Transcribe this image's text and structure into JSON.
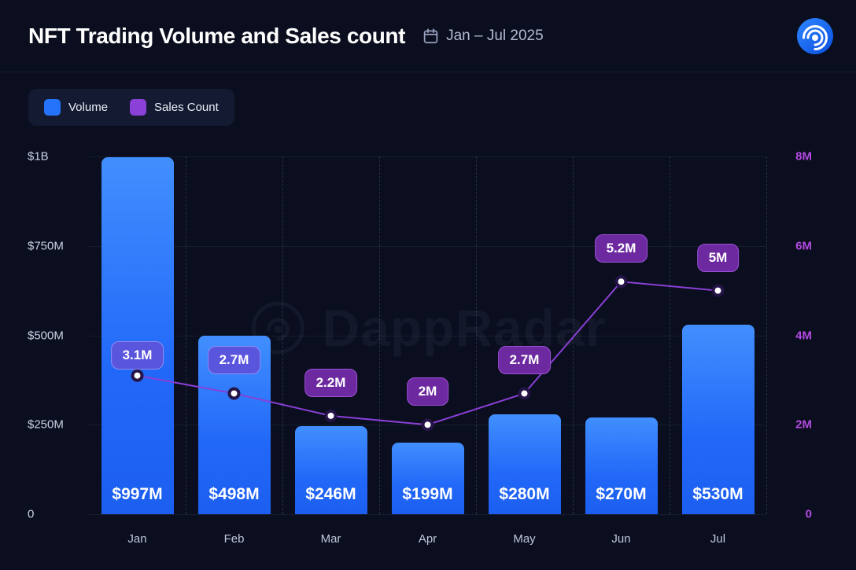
{
  "header": {
    "title": "NFT Trading Volume and Sales count",
    "date_range": "Jan – Jul 2025"
  },
  "legend": {
    "items": [
      {
        "label": "Volume",
        "color": "#2573fb"
      },
      {
        "label": "Sales Count",
        "color": "#8b41d8"
      }
    ]
  },
  "watermark": "DappRadar",
  "chart_data": {
    "type": "combo-bar-line",
    "categories": [
      "Jan",
      "Feb",
      "Mar",
      "Apr",
      "May",
      "Jun",
      "Jul"
    ],
    "series": [
      {
        "name": "Volume",
        "type": "bar",
        "axis": "left",
        "values": [
          997,
          498,
          246,
          199,
          280,
          270,
          530
        ],
        "labels": [
          "$997M",
          "$498M",
          "$246M",
          "$199M",
          "$280M",
          "$270M",
          "$530M"
        ],
        "color": "#2573fb"
      },
      {
        "name": "Sales Count",
        "type": "line",
        "axis": "right",
        "values": [
          3.1,
          2.7,
          2.2,
          2.0,
          2.7,
          5.2,
          5.0
        ],
        "labels": [
          "3.1M",
          "2.7M",
          "2.2M",
          "2M",
          "2.7M",
          "5.2M",
          "5M"
        ],
        "color": "#8a3fd6",
        "point_fill": "#ffffff",
        "point_ring": "#241447"
      }
    ],
    "left_axis": {
      "ticks": [
        "$1B",
        "$750M",
        "$500M",
        "$250M",
        "0"
      ],
      "min": 0,
      "max": 1000,
      "unit": "USD"
    },
    "right_axis": {
      "ticks": [
        "8M",
        "6M",
        "4M",
        "2M",
        "0"
      ],
      "min": 0,
      "max": 8,
      "unit": "sales"
    },
    "grid": {
      "horizontal": true,
      "vertical_dashed": true
    },
    "legend_position": "top-left",
    "badge_styles": [
      {
        "bg": "#5a55dd",
        "border": "#8f8cf2",
        "dy": 26
      },
      {
        "bg": "#5a55dd",
        "border": "#8f8cf2",
        "dy": 42
      },
      {
        "bg": "#6d2aa0",
        "border": "#9c50d6",
        "dy": 42
      },
      {
        "bg": "#6d2aa0",
        "border": "#9c50d6",
        "dy": 42
      },
      {
        "bg": "#6d2aa0",
        "border": "#9c50d6",
        "dy": 42
      },
      {
        "bg": "#6d2aa0",
        "border": "#9c50d6",
        "dy": 42
      },
      {
        "bg": "#6d2aa0",
        "border": "#9c50d6",
        "dy": 42
      }
    ]
  }
}
